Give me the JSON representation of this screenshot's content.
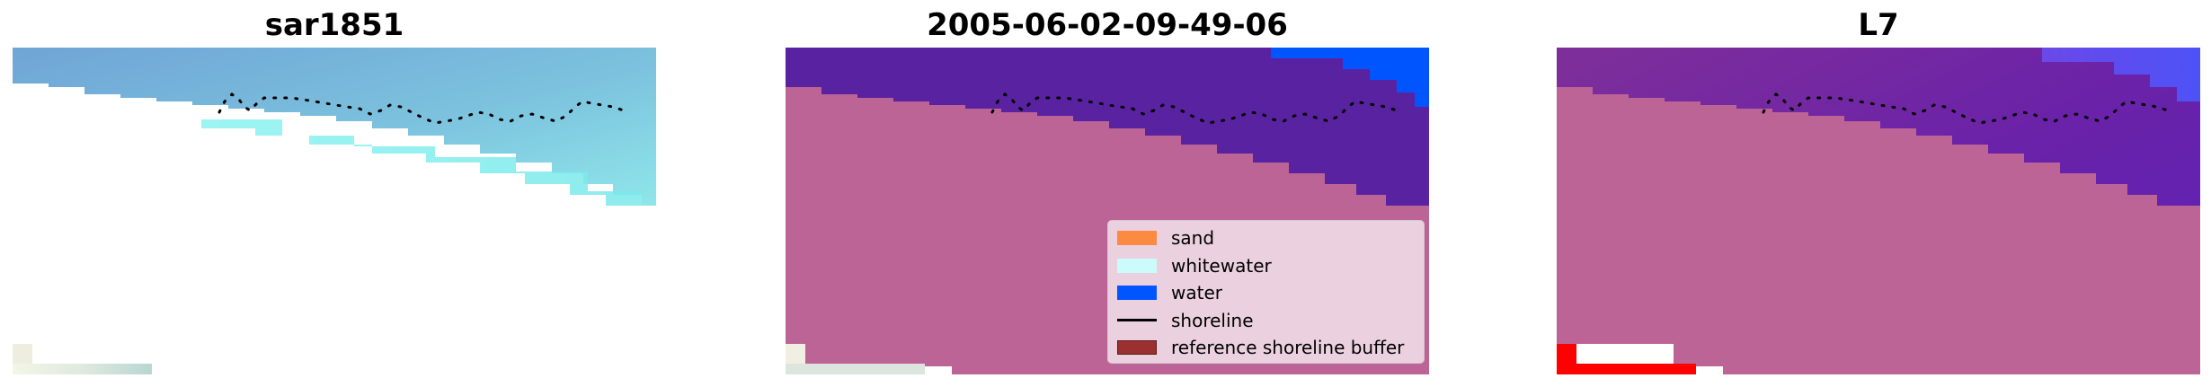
{
  "panels": [
    {
      "title": "sar1851"
    },
    {
      "title": "2005-06-02-09-49-06"
    },
    {
      "title": "L7"
    }
  ],
  "legend": {
    "items": [
      {
        "label": "sand",
        "color": "#fd8a41",
        "kind": "patch"
      },
      {
        "label": "whitewater",
        "color": "#ccfbfb",
        "kind": "patch"
      },
      {
        "label": "water",
        "color": "#0055ff",
        "kind": "patch"
      },
      {
        "label": "shoreline",
        "color": "#000000",
        "kind": "line"
      },
      {
        "label": "reference shoreline buffer",
        "color": "#9b3030",
        "kind": "patch"
      }
    ]
  },
  "colors": {
    "land_overlay": "#bd6496",
    "water_class_dark": "#5922a0",
    "water_class_bright": "#0055ff",
    "reference_buffer_red": "#ff0000",
    "sar_water": "#6ea8d6",
    "sar_whitewater": "#8ff0f0"
  }
}
